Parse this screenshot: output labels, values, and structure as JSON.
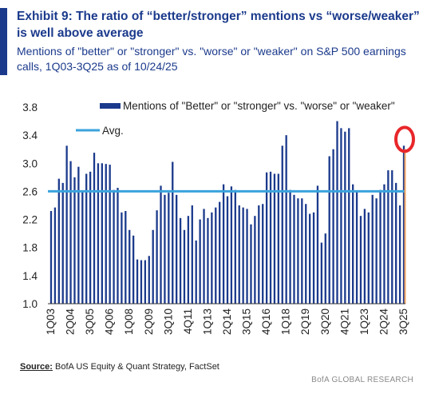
{
  "header": {
    "title": "Exhibit 9: The ratio of “better/stronger” mentions vs “worse/weaker” is well above average",
    "subtitle": "Mentions of \"better\" or \"stronger\" vs. \"worse\" or \"weaker\" on S&P 500 earnings calls, 1Q03-3Q25 as of 10/24/25"
  },
  "footer": {
    "source_label": "Source:",
    "source_text": " BofA US Equity & Quant Strategy, FactSet",
    "brand": "BofA GLOBAL RESEARCH"
  },
  "colors": {
    "bar": "#1b3a8c",
    "avg_line": "#3aa3dc",
    "highlight_line": "#f4a460",
    "circle": "#e8262a",
    "title": "#1b3a8c"
  },
  "chart_data": {
    "type": "bar",
    "ylim": [
      1.0,
      3.8
    ],
    "yticks": [
      "1.0",
      "1.4",
      "1.8",
      "2.2",
      "2.6",
      "3.0",
      "3.4",
      "3.8"
    ],
    "grid": false,
    "legend_position": "top-right",
    "xtick_labels": [
      "1Q03",
      "2Q04",
      "3Q05",
      "4Q06",
      "1Q08",
      "2Q09",
      "3Q10",
      "4Q11",
      "1Q13",
      "2Q14",
      "3Q15",
      "4Q16",
      "1Q18",
      "2Q19",
      "3Q20",
      "4Q21",
      "1Q23",
      "2Q24",
      "3Q25"
    ],
    "categories": [
      "1Q03",
      "2Q03",
      "3Q03",
      "4Q03",
      "1Q04",
      "2Q04",
      "3Q04",
      "4Q04",
      "1Q05",
      "2Q05",
      "3Q05",
      "4Q05",
      "1Q06",
      "2Q06",
      "3Q06",
      "4Q06",
      "1Q07",
      "2Q07",
      "3Q07",
      "4Q07",
      "1Q08",
      "2Q08",
      "3Q08",
      "4Q08",
      "1Q09",
      "2Q09",
      "3Q09",
      "4Q09",
      "1Q10",
      "2Q10",
      "3Q10",
      "4Q10",
      "1Q11",
      "2Q11",
      "3Q11",
      "4Q11",
      "1Q12",
      "2Q12",
      "3Q12",
      "4Q12",
      "1Q13",
      "2Q13",
      "3Q13",
      "4Q13",
      "1Q14",
      "2Q14",
      "3Q14",
      "4Q14",
      "1Q15",
      "2Q15",
      "3Q15",
      "4Q15",
      "1Q16",
      "2Q16",
      "3Q16",
      "4Q16",
      "1Q17",
      "2Q17",
      "3Q17",
      "4Q17",
      "1Q18",
      "2Q18",
      "3Q18",
      "4Q18",
      "1Q19",
      "2Q19",
      "3Q19",
      "4Q19",
      "1Q20",
      "2Q20",
      "3Q20",
      "4Q20",
      "1Q21",
      "2Q21",
      "3Q21",
      "4Q21",
      "1Q22",
      "2Q22",
      "3Q22",
      "4Q22",
      "1Q23",
      "2Q23",
      "3Q23",
      "4Q23",
      "1Q24",
      "2Q24",
      "3Q24",
      "4Q24",
      "1Q25",
      "2Q25",
      "3Q25"
    ],
    "series": [
      {
        "name": "Mentions of \"Better\" or \"stronger\" vs. \"worse\" or \"weaker\"",
        "values": [
          2.32,
          2.37,
          2.78,
          2.72,
          3.25,
          3.03,
          2.8,
          2.95,
          2.6,
          2.85,
          2.88,
          3.15,
          3.0,
          3.0,
          2.99,
          2.98,
          2.62,
          2.65,
          2.3,
          2.32,
          2.05,
          1.97,
          1.63,
          1.62,
          1.62,
          1.68,
          2.05,
          2.33,
          2.68,
          2.55,
          2.58,
          3.02,
          2.55,
          2.22,
          2.05,
          2.25,
          2.4,
          1.9,
          2.2,
          2.35,
          2.22,
          2.3,
          2.37,
          2.45,
          2.7,
          2.53,
          2.67,
          2.62,
          2.4,
          2.37,
          2.35,
          2.13,
          2.25,
          2.4,
          2.42,
          2.87,
          2.88,
          2.85,
          2.85,
          3.25,
          3.4,
          2.62,
          2.55,
          2.5,
          2.5,
          2.42,
          2.28,
          2.3,
          2.68,
          1.87,
          2.0,
          3.1,
          3.2,
          3.6,
          3.5,
          3.45,
          3.5,
          2.7,
          2.6,
          2.25,
          2.35,
          2.3,
          2.55,
          2.5,
          2.62,
          2.7,
          2.9,
          2.9,
          2.72,
          2.4,
          3.25
        ]
      },
      {
        "name": "Avg.",
        "value": 2.6
      }
    ]
  }
}
